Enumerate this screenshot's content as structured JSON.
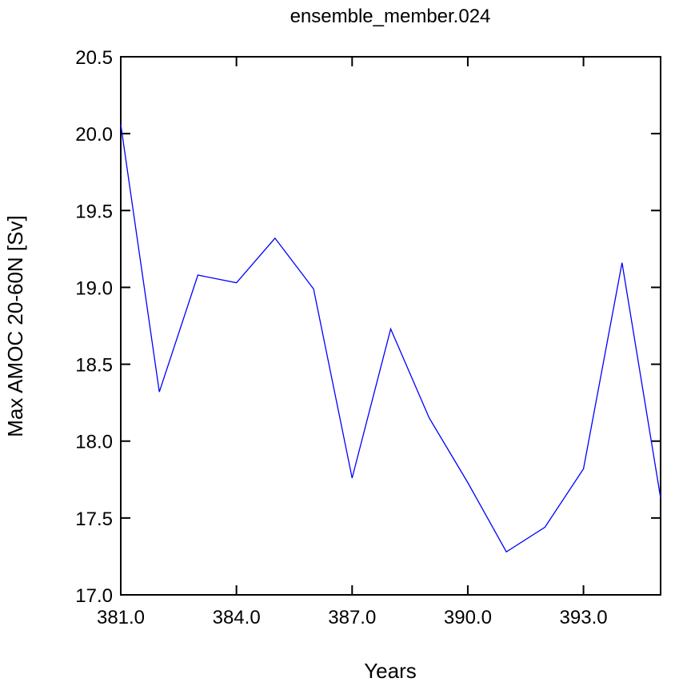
{
  "chart_data": {
    "type": "line",
    "title": "ensemble_member.024",
    "x_label": "Years",
    "y_label": "Max AMOC 20-60N [Sv]",
    "x": [
      381,
      382,
      383,
      384,
      385,
      386,
      387,
      388,
      389,
      390,
      391,
      392,
      393,
      394,
      395
    ],
    "series": [
      {
        "name": "ensemble_member.024",
        "color": "#0000ff",
        "values": [
          20.06,
          18.32,
          19.08,
          19.03,
          19.32,
          18.99,
          17.76,
          18.73,
          18.15,
          17.73,
          17.28,
          17.44,
          17.82,
          19.16,
          17.63
        ]
      }
    ],
    "xlim": [
      381,
      395
    ],
    "xticks": [
      {
        "value": 381,
        "label": "381.0"
      },
      {
        "value": 384,
        "label": "384.0"
      },
      {
        "value": 387,
        "label": "387.0"
      },
      {
        "value": 390,
        "label": "390.0"
      },
      {
        "value": 393,
        "label": "393.0"
      }
    ],
    "ylim": [
      17,
      20.5
    ],
    "yticks": [
      {
        "value": 17,
        "label": "17.0"
      },
      17.5,
      {
        "value": 18,
        "label": "18.0"
      },
      18.5,
      {
        "value": 19,
        "label": "19.0"
      },
      19.5,
      {
        "value": 20,
        "label": "20.0"
      },
      20.5
    ]
  }
}
